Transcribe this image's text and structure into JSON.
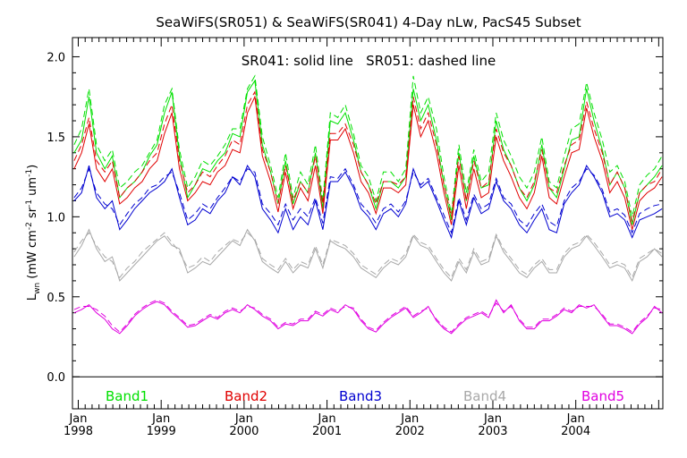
{
  "chart_data": {
    "type": "line",
    "title": "SeaWiFS(SR051) & SeaWiFS(SR041) 4-Day nLw, PacS45 Subset",
    "annotation": "SR041: solid line   SR051: dashed line",
    "ylabel": "Lwn (mW cm⁻² sr⁻¹ um⁻¹)",
    "ylabel_main": "L",
    "ylabel_sub": "wn",
    "ylabel_rest": " (mW cm",
    "ylabel_sup1": "-2",
    "ylabel_mid": " sr",
    "ylabel_sup2": "-1",
    "ylabel_mid2": " um",
    "ylabel_sup3": "-1",
    "ylabel_end": ")",
    "ylim": [
      -0.2,
      2.12
    ],
    "yticks": [
      "0.0",
      "0.5",
      "1.0",
      "1.5",
      "2.0"
    ],
    "xlim": [
      1997.93,
      2005.05
    ],
    "xticks": [
      {
        "month": "Jan",
        "year": "1998"
      },
      {
        "month": "Jan",
        "year": "1999"
      },
      {
        "month": "Jan",
        "year": "2000"
      },
      {
        "month": "Jan",
        "year": "2001"
      },
      {
        "month": "Jan",
        "year": "2002"
      },
      {
        "month": "Jan",
        "year": "2003"
      },
      {
        "month": "Jan",
        "year": "2004"
      }
    ],
    "legend_placement": "bottom",
    "x": [
      1997.95,
      1998.04,
      1998.13,
      1998.22,
      1998.32,
      1998.41,
      1998.5,
      1998.59,
      1998.68,
      1998.77,
      1998.86,
      1998.95,
      1999.04,
      1999.13,
      1999.22,
      1999.32,
      1999.41,
      1999.5,
      1999.59,
      1999.68,
      1999.77,
      1999.86,
      1999.95,
      2000.04,
      2000.13,
      2000.22,
      2000.32,
      2000.41,
      2000.5,
      2000.59,
      2000.68,
      2000.77,
      2000.86,
      2000.95,
      2001.04,
      2001.13,
      2001.22,
      2001.32,
      2001.41,
      2001.5,
      2001.59,
      2001.68,
      2001.77,
      2001.86,
      2001.95,
      2002.04,
      2002.13,
      2002.22,
      2002.32,
      2002.41,
      2002.5,
      2002.59,
      2002.68,
      2002.77,
      2002.86,
      2002.95,
      2003.04,
      2003.13,
      2003.22,
      2003.32,
      2003.41,
      2003.5,
      2003.59,
      2003.68,
      2003.77,
      2003.86,
      2003.95,
      2004.04,
      2004.13,
      2004.22,
      2004.32,
      2004.41,
      2004.5,
      2004.59,
      2004.68,
      2004.77,
      2004.86,
      2004.95,
      2005.04
    ],
    "series": [
      {
        "name": "Band1",
        "color": "#00e000",
        "solid": [
          1.4,
          1.48,
          1.75,
          1.4,
          1.3,
          1.38,
          1.12,
          1.18,
          1.22,
          1.28,
          1.38,
          1.45,
          1.65,
          1.78,
          1.38,
          1.12,
          1.2,
          1.3,
          1.28,
          1.35,
          1.4,
          1.52,
          1.5,
          1.78,
          1.85,
          1.45,
          1.28,
          1.08,
          1.35,
          1.08,
          1.22,
          1.15,
          1.4,
          1.05,
          1.6,
          1.58,
          1.65,
          1.48,
          1.28,
          1.2,
          1.05,
          1.22,
          1.22,
          1.18,
          1.25,
          1.8,
          1.6,
          1.7,
          1.48,
          1.2,
          0.98,
          1.4,
          1.1,
          1.38,
          1.18,
          1.2,
          1.6,
          1.42,
          1.32,
          1.18,
          1.1,
          1.2,
          1.45,
          1.18,
          1.12,
          1.3,
          1.48,
          1.5,
          1.8,
          1.6,
          1.42,
          1.2,
          1.28,
          1.18,
          0.95,
          1.15,
          1.2,
          1.25,
          1.32
        ],
        "dashed": [
          1.45,
          1.55,
          1.8,
          1.45,
          1.35,
          1.42,
          1.18,
          1.22,
          1.28,
          1.32,
          1.4,
          1.48,
          1.7,
          1.8,
          1.42,
          1.18,
          1.25,
          1.35,
          1.32,
          1.38,
          1.45,
          1.55,
          1.55,
          1.8,
          1.88,
          1.5,
          1.32,
          1.12,
          1.4,
          1.12,
          1.28,
          1.2,
          1.45,
          1.1,
          1.65,
          1.62,
          1.7,
          1.52,
          1.32,
          1.25,
          1.1,
          1.28,
          1.28,
          1.22,
          1.3,
          1.88,
          1.65,
          1.75,
          1.55,
          1.25,
          1.02,
          1.45,
          1.15,
          1.42,
          1.22,
          1.28,
          1.65,
          1.48,
          1.38,
          1.25,
          1.18,
          1.28,
          1.5,
          1.22,
          1.18,
          1.38,
          1.55,
          1.58,
          1.84,
          1.65,
          1.48,
          1.28,
          1.32,
          1.22,
          1.0,
          1.2,
          1.26,
          1.3,
          1.38
        ]
      },
      {
        "name": "Band2",
        "color": "#e00000",
        "solid": [
          1.3,
          1.4,
          1.58,
          1.3,
          1.22,
          1.3,
          1.08,
          1.12,
          1.18,
          1.22,
          1.3,
          1.35,
          1.52,
          1.65,
          1.3,
          1.1,
          1.15,
          1.22,
          1.2,
          1.28,
          1.32,
          1.42,
          1.4,
          1.65,
          1.75,
          1.38,
          1.22,
          1.03,
          1.28,
          1.05,
          1.18,
          1.1,
          1.32,
          1.02,
          1.48,
          1.48,
          1.55,
          1.4,
          1.22,
          1.15,
          1.02,
          1.18,
          1.18,
          1.15,
          1.2,
          1.7,
          1.5,
          1.6,
          1.4,
          1.15,
          0.95,
          1.32,
          1.05,
          1.3,
          1.12,
          1.15,
          1.5,
          1.35,
          1.25,
          1.12,
          1.05,
          1.15,
          1.38,
          1.12,
          1.08,
          1.25,
          1.4,
          1.42,
          1.68,
          1.5,
          1.35,
          1.15,
          1.22,
          1.12,
          0.92,
          1.1,
          1.15,
          1.18,
          1.25
        ],
        "dashed": [
          1.35,
          1.45,
          1.62,
          1.35,
          1.28,
          1.35,
          1.12,
          1.18,
          1.22,
          1.28,
          1.35,
          1.4,
          1.58,
          1.7,
          1.35,
          1.15,
          1.2,
          1.28,
          1.25,
          1.32,
          1.38,
          1.48,
          1.45,
          1.7,
          1.78,
          1.42,
          1.28,
          1.08,
          1.32,
          1.1,
          1.22,
          1.15,
          1.38,
          1.08,
          1.52,
          1.52,
          1.58,
          1.45,
          1.28,
          1.2,
          1.08,
          1.22,
          1.22,
          1.2,
          1.25,
          1.75,
          1.55,
          1.65,
          1.45,
          1.2,
          1.0,
          1.38,
          1.1,
          1.35,
          1.18,
          1.22,
          1.55,
          1.4,
          1.32,
          1.18,
          1.12,
          1.22,
          1.42,
          1.18,
          1.15,
          1.32,
          1.45,
          1.48,
          1.72,
          1.55,
          1.4,
          1.2,
          1.28,
          1.18,
          0.97,
          1.15,
          1.2,
          1.22,
          1.3
        ]
      },
      {
        "name": "Band3",
        "color": "#0000d0",
        "solid": [
          1.1,
          1.15,
          1.32,
          1.12,
          1.05,
          1.1,
          0.92,
          0.98,
          1.05,
          1.1,
          1.15,
          1.18,
          1.22,
          1.3,
          1.12,
          0.95,
          0.98,
          1.05,
          1.02,
          1.1,
          1.15,
          1.25,
          1.2,
          1.32,
          1.25,
          1.05,
          0.98,
          0.9,
          1.05,
          0.92,
          1.0,
          0.95,
          1.1,
          0.92,
          1.22,
          1.22,
          1.28,
          1.18,
          1.05,
          1.0,
          0.92,
          1.02,
          1.05,
          1.0,
          1.08,
          1.3,
          1.18,
          1.22,
          1.1,
          0.98,
          0.87,
          1.1,
          0.95,
          1.12,
          1.02,
          1.05,
          1.22,
          1.1,
          1.05,
          0.95,
          0.9,
          0.98,
          1.05,
          0.92,
          0.9,
          1.08,
          1.15,
          1.2,
          1.32,
          1.25,
          1.15,
          1.0,
          1.02,
          0.98,
          0.87,
          0.98,
          1.0,
          1.02,
          1.05
        ],
        "dashed": [
          1.12,
          1.18,
          1.3,
          1.15,
          1.08,
          1.05,
          0.95,
          1.02,
          1.08,
          1.12,
          1.18,
          1.2,
          1.25,
          1.28,
          1.15,
          0.98,
          1.02,
          1.08,
          1.05,
          1.12,
          1.18,
          1.25,
          1.22,
          1.3,
          1.28,
          1.08,
          1.02,
          0.95,
          1.08,
          0.98,
          1.05,
          1.0,
          1.12,
          0.96,
          1.25,
          1.24,
          1.3,
          1.2,
          1.08,
          1.03,
          0.96,
          1.05,
          1.08,
          1.03,
          1.1,
          1.28,
          1.2,
          1.24,
          1.12,
          1.01,
          0.9,
          1.12,
          0.98,
          1.14,
          1.05,
          1.08,
          1.24,
          1.12,
          1.08,
          0.98,
          0.94,
          1.02,
          1.08,
          0.97,
          0.94,
          1.1,
          1.18,
          1.22,
          1.3,
          1.26,
          1.17,
          1.03,
          1.05,
          1.01,
          0.9,
          1.02,
          1.05,
          1.07,
          1.08
        ]
      },
      {
        "name": "Band4",
        "color": "#a8a8a8",
        "solid": [
          0.75,
          0.82,
          0.92,
          0.8,
          0.72,
          0.75,
          0.6,
          0.65,
          0.7,
          0.75,
          0.8,
          0.85,
          0.88,
          0.82,
          0.8,
          0.65,
          0.68,
          0.72,
          0.7,
          0.75,
          0.8,
          0.85,
          0.82,
          0.92,
          0.85,
          0.72,
          0.68,
          0.65,
          0.72,
          0.65,
          0.7,
          0.68,
          0.8,
          0.68,
          0.85,
          0.82,
          0.8,
          0.75,
          0.68,
          0.65,
          0.62,
          0.68,
          0.72,
          0.7,
          0.75,
          0.88,
          0.82,
          0.8,
          0.72,
          0.65,
          0.6,
          0.72,
          0.65,
          0.78,
          0.7,
          0.72,
          0.88,
          0.78,
          0.72,
          0.65,
          0.62,
          0.68,
          0.72,
          0.65,
          0.65,
          0.75,
          0.8,
          0.82,
          0.88,
          0.82,
          0.75,
          0.68,
          0.7,
          0.68,
          0.6,
          0.72,
          0.75,
          0.8,
          0.75
        ],
        "dashed": [
          0.78,
          0.85,
          0.9,
          0.82,
          0.75,
          0.72,
          0.62,
          0.68,
          0.72,
          0.78,
          0.82,
          0.86,
          0.9,
          0.84,
          0.78,
          0.68,
          0.7,
          0.75,
          0.72,
          0.78,
          0.82,
          0.86,
          0.84,
          0.9,
          0.86,
          0.74,
          0.7,
          0.67,
          0.74,
          0.67,
          0.72,
          0.7,
          0.82,
          0.7,
          0.86,
          0.84,
          0.82,
          0.77,
          0.7,
          0.67,
          0.64,
          0.7,
          0.74,
          0.72,
          0.77,
          0.89,
          0.84,
          0.82,
          0.74,
          0.67,
          0.62,
          0.74,
          0.67,
          0.8,
          0.72,
          0.74,
          0.89,
          0.8,
          0.74,
          0.67,
          0.64,
          0.7,
          0.74,
          0.67,
          0.67,
          0.77,
          0.82,
          0.84,
          0.89,
          0.84,
          0.77,
          0.7,
          0.72,
          0.7,
          0.62,
          0.74,
          0.77,
          0.8,
          0.77
        ]
      },
      {
        "name": "Band5",
        "color": "#e000e0",
        "solid": [
          0.4,
          0.42,
          0.45,
          0.4,
          0.36,
          0.3,
          0.27,
          0.32,
          0.38,
          0.42,
          0.45,
          0.47,
          0.45,
          0.4,
          0.36,
          0.31,
          0.32,
          0.35,
          0.38,
          0.36,
          0.4,
          0.42,
          0.4,
          0.45,
          0.42,
          0.38,
          0.35,
          0.3,
          0.33,
          0.32,
          0.35,
          0.35,
          0.4,
          0.38,
          0.42,
          0.4,
          0.45,
          0.42,
          0.35,
          0.3,
          0.28,
          0.33,
          0.37,
          0.4,
          0.43,
          0.37,
          0.4,
          0.44,
          0.35,
          0.3,
          0.27,
          0.32,
          0.36,
          0.38,
          0.4,
          0.37,
          0.48,
          0.4,
          0.45,
          0.35,
          0.3,
          0.3,
          0.35,
          0.35,
          0.38,
          0.42,
          0.4,
          0.45,
          0.43,
          0.45,
          0.38,
          0.32,
          0.32,
          0.3,
          0.27,
          0.33,
          0.37,
          0.44,
          0.4
        ],
        "dashed": [
          0.42,
          0.44,
          0.44,
          0.42,
          0.38,
          0.32,
          0.28,
          0.33,
          0.39,
          0.43,
          0.46,
          0.48,
          0.46,
          0.41,
          0.37,
          0.32,
          0.33,
          0.36,
          0.39,
          0.37,
          0.41,
          0.43,
          0.41,
          0.44,
          0.43,
          0.39,
          0.36,
          0.31,
          0.34,
          0.33,
          0.36,
          0.36,
          0.41,
          0.39,
          0.43,
          0.41,
          0.44,
          0.43,
          0.36,
          0.31,
          0.29,
          0.34,
          0.38,
          0.41,
          0.44,
          0.38,
          0.41,
          0.43,
          0.36,
          0.31,
          0.28,
          0.33,
          0.37,
          0.39,
          0.41,
          0.38,
          0.46,
          0.41,
          0.44,
          0.36,
          0.31,
          0.31,
          0.36,
          0.36,
          0.39,
          0.43,
          0.41,
          0.44,
          0.44,
          0.44,
          0.39,
          0.33,
          0.33,
          0.31,
          0.28,
          0.34,
          0.38,
          0.43,
          0.42
        ]
      }
    ]
  }
}
